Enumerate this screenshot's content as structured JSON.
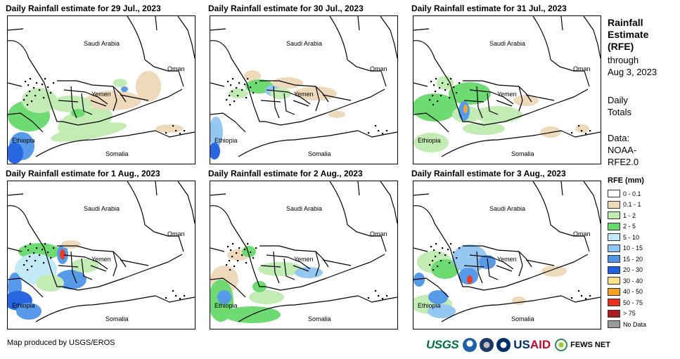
{
  "panels": [
    {
      "title": "Daily Rainfall estimate for 29 Jul., 2023",
      "preset": "p1"
    },
    {
      "title": "Daily Rainfall estimate for 30 Jul., 2023",
      "preset": "p2"
    },
    {
      "title": "Daily Rainfall estimate for 31 Jul., 2023",
      "preset": "p3"
    },
    {
      "title": "Daily Rainfall estimate for 1 Aug., 2023",
      "preset": "p4"
    },
    {
      "title": "Daily Rainfall estimate for 2 Aug., 2023",
      "preset": "p5"
    },
    {
      "title": "Daily Rainfall estimate for 3 Aug., 2023",
      "preset": "p6"
    }
  ],
  "places": {
    "saudi": "Saudi Arabia",
    "oman": "Oman",
    "yemen": "Yemen",
    "ethiopia": "Ethiopia",
    "somalia": "Somalia"
  },
  "sidebar": {
    "title_lines": [
      "Rainfall",
      "Estimate",
      "(RFE)"
    ],
    "through_lines": [
      "through",
      "Aug 3, 2023"
    ],
    "daily_lines": [
      "Daily",
      "Totals"
    ],
    "data_lines": [
      "Data:",
      "NOAA-",
      "RFE2.0"
    ]
  },
  "legend": {
    "title": "RFE (mm)",
    "items": [
      {
        "label": "0 - 0.1",
        "color": "#ffffff"
      },
      {
        "label": "0.1 - 1",
        "color": "#eed9b8"
      },
      {
        "label": "1 - 2",
        "color": "#bfecb0"
      },
      {
        "label": "2 - 5",
        "color": "#66d96b"
      },
      {
        "label": "5 - 10",
        "color": "#bfe9f7"
      },
      {
        "label": "10 - 15",
        "color": "#8fc5f2"
      },
      {
        "label": "15 - 20",
        "color": "#4e95e8"
      },
      {
        "label": "20 - 30",
        "color": "#1d5fe0"
      },
      {
        "label": "30 - 40",
        "color": "#fbe38a"
      },
      {
        "label": "40 - 50",
        "color": "#f7a21e"
      },
      {
        "label": "50 - 75",
        "color": "#e8311a"
      },
      {
        "label": "> 75",
        "color": "#a81c22"
      },
      {
        "label": "No Data",
        "color": "#9a9a9a"
      }
    ]
  },
  "footer": {
    "credit": "Map produced by USGS/EROS",
    "usgs": "USGS",
    "usaid_a": "US",
    "usaid_b": "AID",
    "fews": "FEWS NET"
  }
}
